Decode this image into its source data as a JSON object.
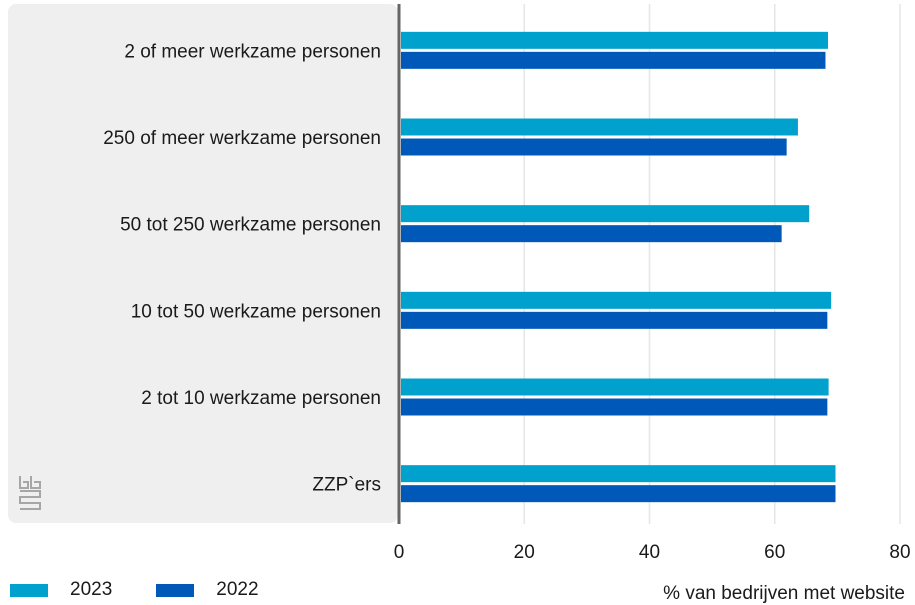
{
  "chart_data": {
    "type": "bar",
    "orientation": "horizontal",
    "categories": [
      "2 of meer werkzame personen",
      "250 of meer werkzame personen",
      "50 tot 250 werkzame personen",
      "10 tot 50 werkzame personen",
      "2 tot 10 werkzame personen",
      "ZZP`ers"
    ],
    "series": [
      {
        "name": "2023",
        "color": "#00a1cd",
        "values": [
          68.5,
          63.7,
          65.5,
          69.0,
          68.6,
          69.7
        ]
      },
      {
        "name": "2022",
        "color": "#0058b8",
        "values": [
          68.1,
          61.9,
          61.1,
          68.4,
          68.4,
          69.7
        ]
      }
    ],
    "xlabel": "% van bedrijven met website",
    "xlim": [
      0,
      80
    ],
    "xticks": [
      0,
      20,
      40,
      60,
      80
    ],
    "grid": true,
    "legend_position": "bottom-left"
  },
  "logo": {
    "icon": "cbs-logo-icon"
  }
}
